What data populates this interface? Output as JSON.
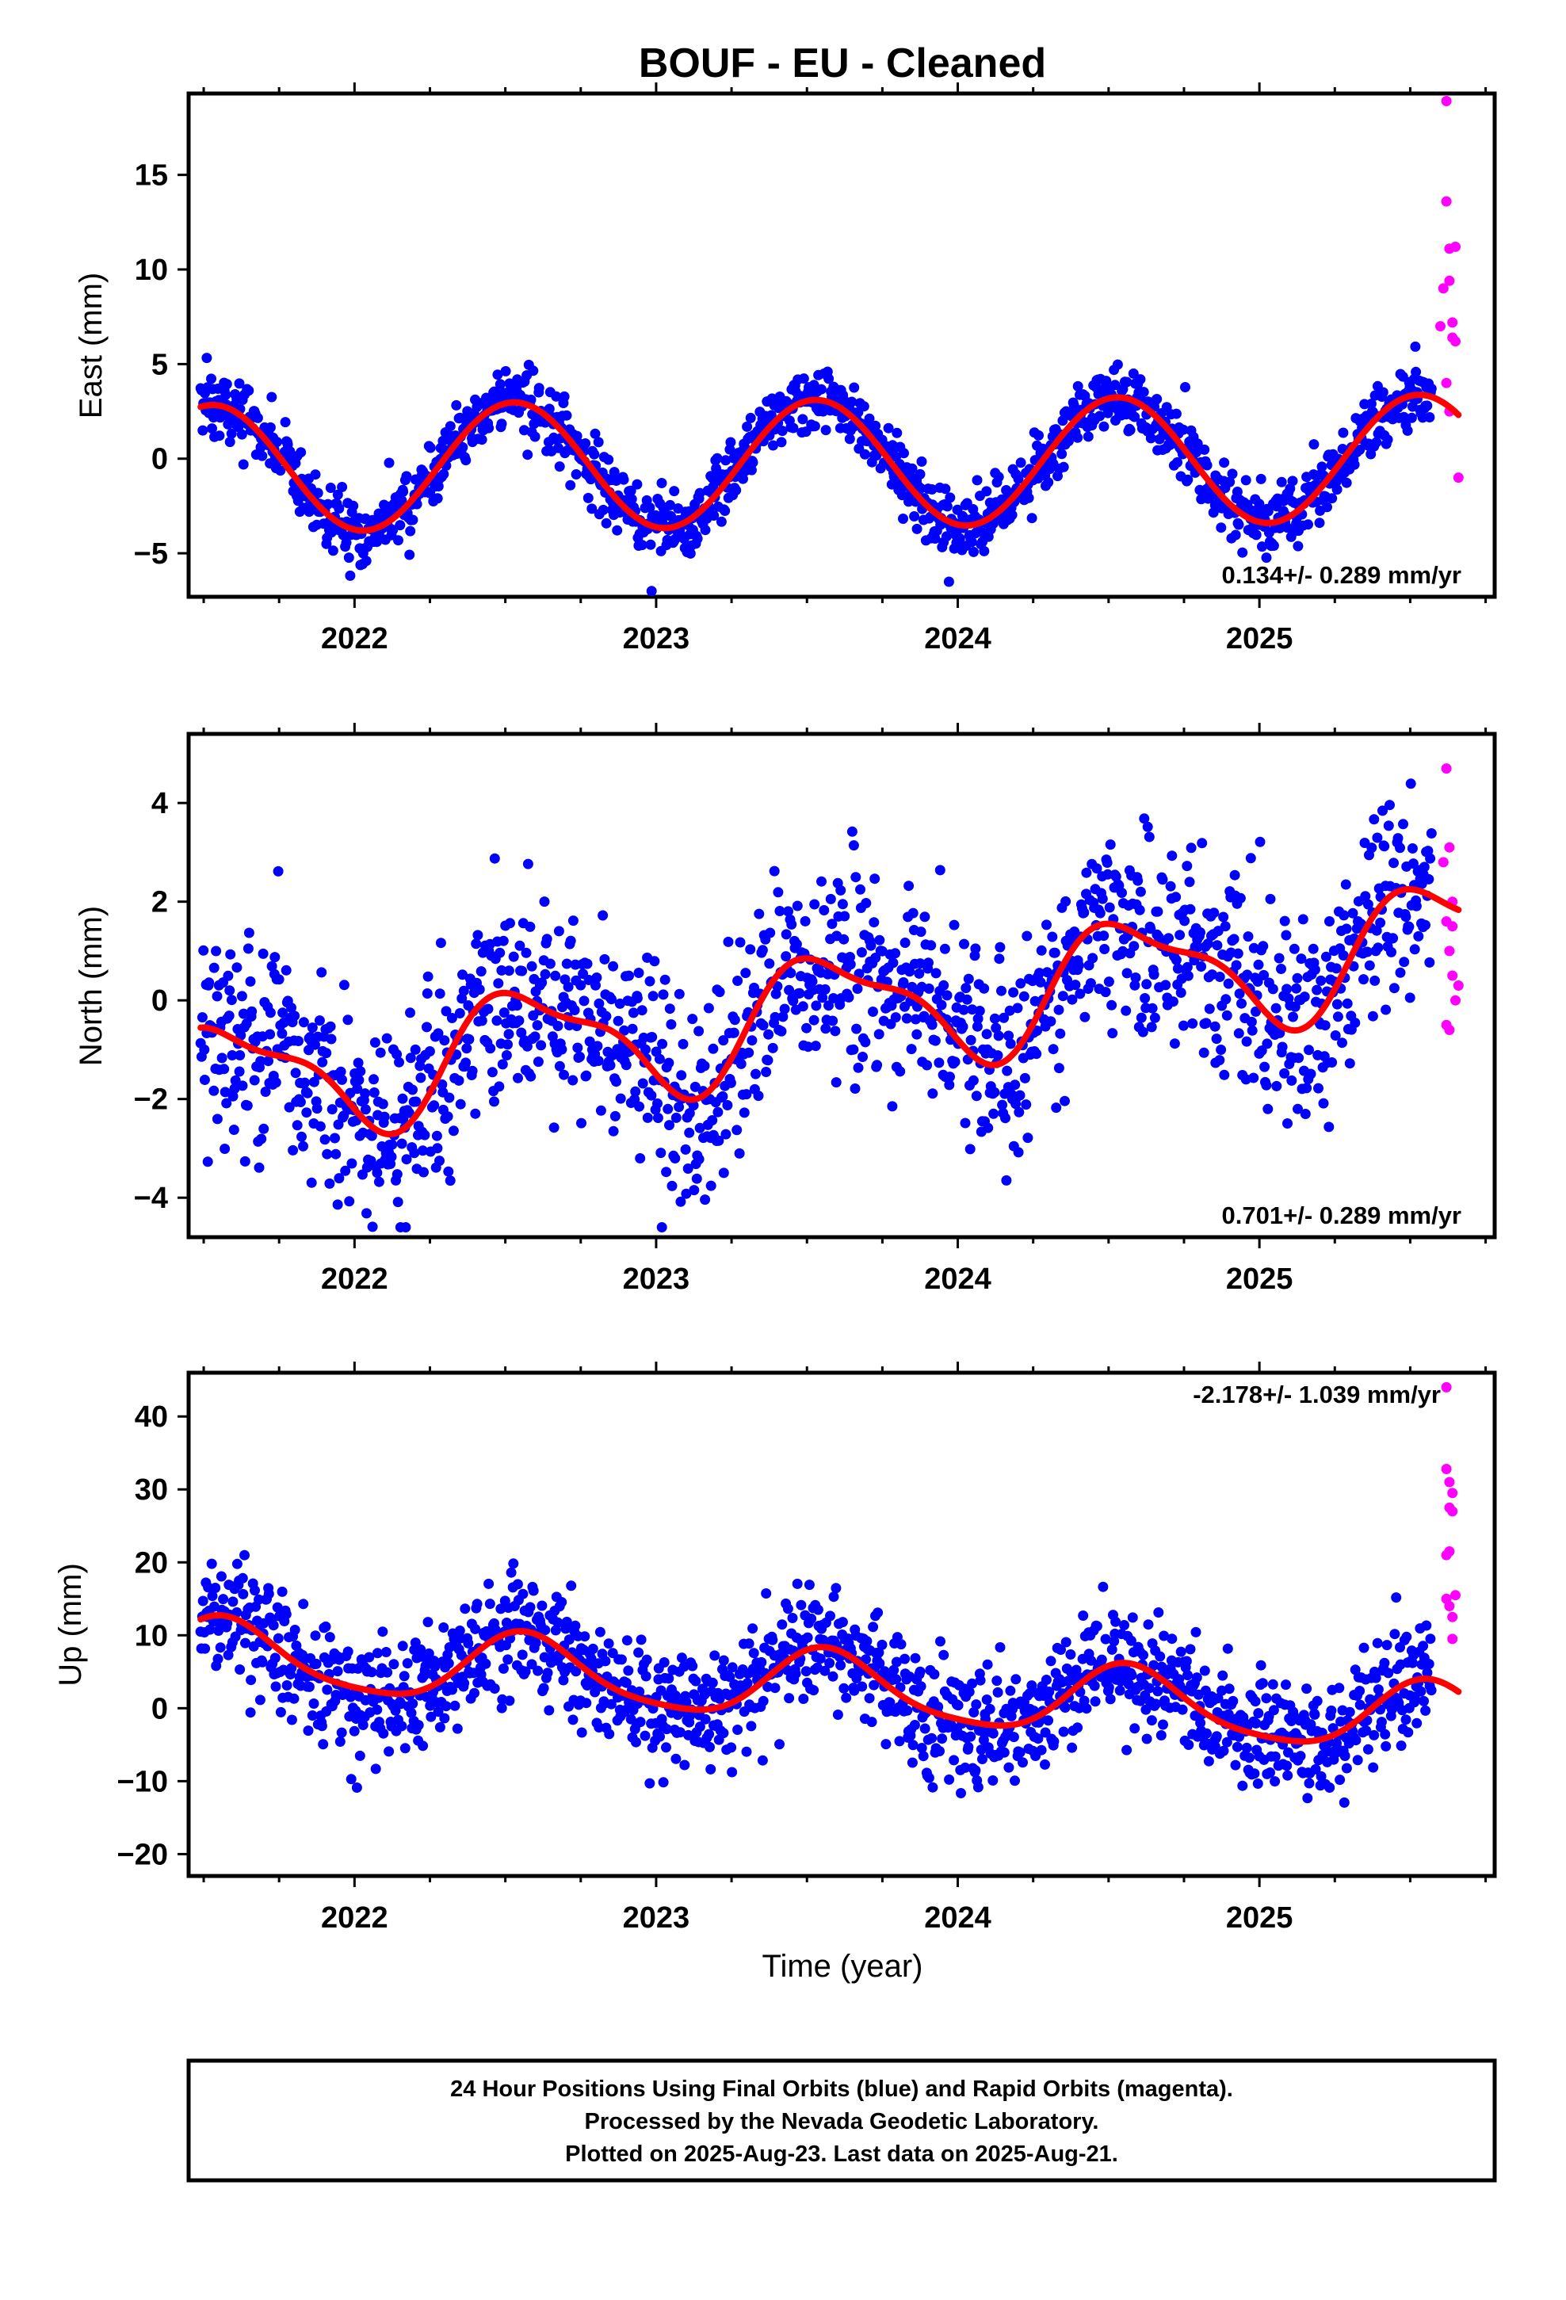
{
  "colors": {
    "final_orbits": "#0000ff",
    "rapid_orbits": "#ff00ff",
    "model_fit": "#ff0000",
    "frame": "#000000"
  },
  "chart_data": [
    {
      "type": "scatter",
      "title": "BOUF  - EU - Cleaned",
      "ylabel": "East (mm)",
      "xlabel": "",
      "xlim": [
        2021.45,
        2025.78
      ],
      "ylim": [
        -7.3,
        19.3
      ],
      "xticks": [
        2022,
        2023,
        2024,
        2025
      ],
      "yticks": [
        -5,
        0,
        5,
        10,
        15
      ],
      "grid": false,
      "rate_label": "0.134+/- 0.289 mm/yr",
      "model": {
        "offset": -0.25,
        "rate": 0.134,
        "amp_cos": -3.3,
        "amp_sin": -0.6,
        "amp_cos2": 0.0,
        "amp_sin2": 0.0
      },
      "final_noise": 0.9,
      "rapid_points": [
        [
          2025.62,
          18.9
        ],
        [
          2025.62,
          13.6
        ],
        [
          2025.63,
          11.1
        ],
        [
          2025.63,
          9.4
        ],
        [
          2025.64,
          7.2
        ],
        [
          2025.65,
          6.2
        ],
        [
          2025.61,
          9.0
        ],
        [
          2025.62,
          4.0
        ],
        [
          2025.63,
          2.5
        ],
        [
          2025.65,
          11.2
        ],
        [
          2025.64,
          6.4
        ],
        [
          2025.66,
          -1.0
        ],
        [
          2025.6,
          7.0
        ]
      ]
    },
    {
      "type": "scatter",
      "title": "",
      "ylabel": "North (mm)",
      "xlabel": "",
      "xlim": [
        2021.45,
        2025.78
      ],
      "ylim": [
        -4.8,
        5.4
      ],
      "xticks": [
        2022,
        2023,
        2024,
        2025
      ],
      "yticks": [
        -4,
        -2,
        0,
        2,
        4
      ],
      "grid": false,
      "rate_label": "0.701+/- 0.289 mm/yr",
      "model": {
        "offset": -0.3,
        "rate": 0.701,
        "amp_cos": -1.0,
        "amp_sin": -0.55,
        "amp_cos2": 0.15,
        "amp_sin2": -0.35
      },
      "final_noise": 1.0,
      "rapid_points": [
        [
          2025.62,
          4.7
        ],
        [
          2025.63,
          3.1
        ],
        [
          2025.64,
          2.0
        ],
        [
          2025.62,
          1.6
        ],
        [
          2025.63,
          1.0
        ],
        [
          2025.64,
          0.5
        ],
        [
          2025.65,
          0.0
        ],
        [
          2025.62,
          -0.5
        ],
        [
          2025.63,
          -0.6
        ],
        [
          2025.61,
          2.8
        ],
        [
          2025.64,
          1.5
        ],
        [
          2025.66,
          0.3
        ]
      ]
    },
    {
      "type": "scatter",
      "title": "",
      "ylabel": "Up (mm)",
      "xlabel": "Time (year)",
      "xlim": [
        2021.45,
        2025.78
      ],
      "ylim": [
        -23,
        46
      ],
      "xticks": [
        2022,
        2023,
        2024,
        2025
      ],
      "yticks": [
        -20,
        -10,
        0,
        10,
        20,
        30,
        40
      ],
      "grid": false,
      "rate_label": "-2.178+/- 1.039 mm/yr",
      "model": {
        "offset": 3.0,
        "rate": -2.178,
        "amp_cos": -4.2,
        "amp_sin": -2.0,
        "amp_cos2": 0.8,
        "amp_sin2": 0.4
      },
      "final_noise": 4.0,
      "rapid_points": [
        [
          2025.62,
          44.0
        ],
        [
          2025.62,
          32.8
        ],
        [
          2025.63,
          31.0
        ],
        [
          2025.64,
          29.5
        ],
        [
          2025.63,
          27.5
        ],
        [
          2025.64,
          27.0
        ],
        [
          2025.62,
          21.0
        ],
        [
          2025.63,
          21.5
        ],
        [
          2025.62,
          15.0
        ],
        [
          2025.63,
          14.0
        ],
        [
          2025.64,
          12.5
        ],
        [
          2025.64,
          9.5
        ],
        [
          2025.65,
          15.5
        ]
      ]
    }
  ],
  "footer": {
    "line1": "24 Hour Positions Using Final Orbits (blue) and Rapid Orbits (magenta).",
    "line2": "Processed by the Nevada Geodetic Laboratory.",
    "line3": "Plotted on 2025-Aug-23. Last data on 2025-Aug-21."
  }
}
